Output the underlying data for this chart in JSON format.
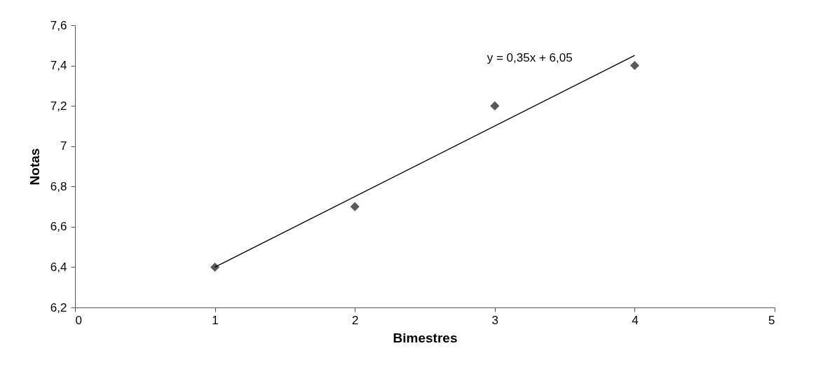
{
  "chart_data": {
    "type": "scatter",
    "xlabel": "Bimestres",
    "ylabel": "Notas",
    "xlim": [
      0,
      5
    ],
    "xticks": [
      0,
      1,
      2,
      3,
      4,
      5
    ],
    "ylim": [
      6.2,
      7.6
    ],
    "yticks": [
      {
        "value": 6.2,
        "label": "6,2"
      },
      {
        "value": 6.4,
        "label": "6,4"
      },
      {
        "value": 6.6,
        "label": "6,6"
      },
      {
        "value": 6.8,
        "label": "6,8"
      },
      7,
      {
        "value": 7.2,
        "label": "7,2"
      },
      {
        "value": 7.4,
        "label": "7,4"
      },
      {
        "value": 7.6,
        "label": "7,6"
      }
    ],
    "grid": false,
    "series": [
      {
        "marker": "diamond",
        "color": "#595959",
        "x": [
          1,
          2,
          3,
          4
        ],
        "values": [
          6.4,
          6.7,
          7.2,
          7.4
        ]
      },
      {
        "type": "line",
        "color": "#000000",
        "x": [
          1,
          4
        ],
        "values": [
          6.4,
          7.45
        ]
      }
    ],
    "annotations": [
      "y = 0,35x + 6,05"
    ]
  }
}
